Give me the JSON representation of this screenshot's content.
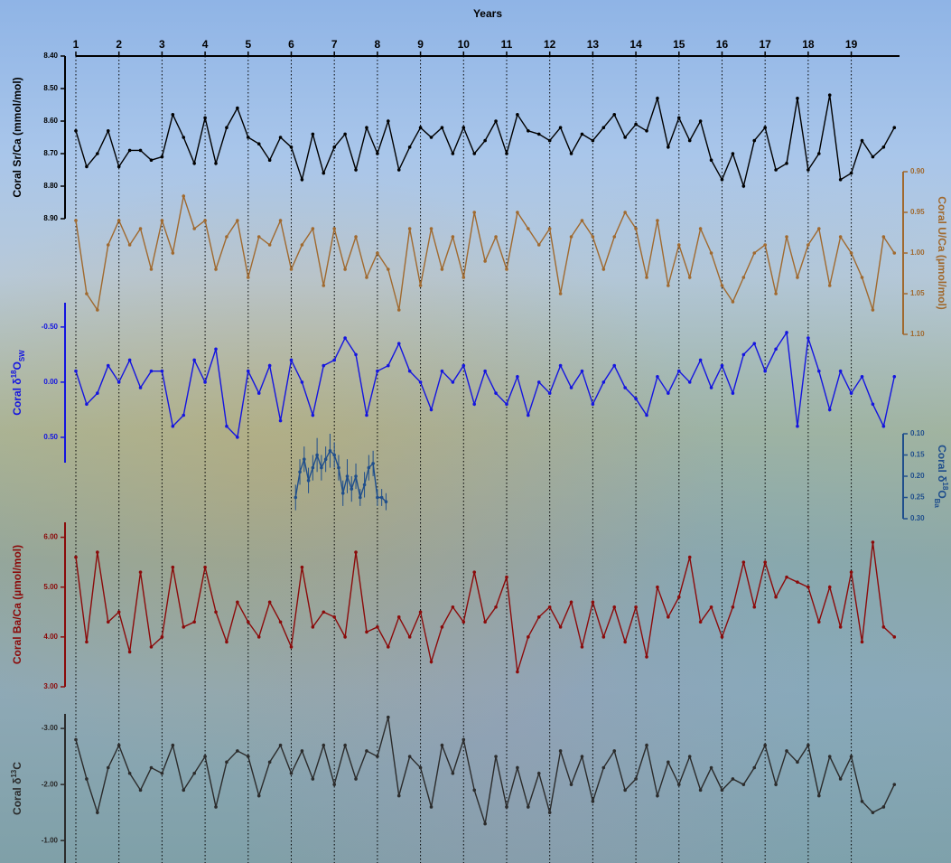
{
  "chart_data": {
    "type": "line",
    "xlabel": "Years",
    "xlim": [
      1,
      20.12
    ],
    "xticks": [
      1,
      2,
      3,
      4,
      5,
      6,
      7,
      8,
      9,
      10,
      11,
      12,
      13,
      14,
      15,
      16,
      17,
      18,
      19
    ],
    "grid": true,
    "x": [
      1,
      1.25,
      1.5,
      1.75,
      2,
      2.25,
      2.5,
      2.75,
      3,
      3.25,
      3.5,
      3.75,
      4,
      4.25,
      4.5,
      4.75,
      5,
      5.25,
      5.5,
      5.75,
      6,
      6.25,
      6.5,
      6.75,
      7,
      7.25,
      7.5,
      7.75,
      8,
      8.25,
      8.5,
      8.75,
      9,
      9.25,
      9.5,
      9.75,
      10,
      10.25,
      10.5,
      10.75,
      11,
      11.25,
      11.5,
      11.75,
      12,
      12.25,
      12.5,
      12.75,
      13,
      13.25,
      13.5,
      13.75,
      14,
      14.25,
      14.5,
      14.75,
      15,
      15.25,
      15.5,
      15.75,
      16,
      16.25,
      16.5,
      16.75,
      17,
      17.25,
      17.5,
      17.75,
      18,
      18.25,
      18.5,
      18.75,
      19,
      19.25,
      19.5,
      19.75,
      20
    ],
    "series": [
      {
        "label": [
          {
            "text": "Coral Sr/Ca (mmol/mol)"
          }
        ],
        "color": "#000000",
        "side": "left",
        "inverted": true,
        "ylim": [
          8.4,
          8.9
        ],
        "yticks": [
          {
            "value": 8.4,
            "label": "8.40"
          },
          {
            "value": 8.5,
            "label": "8.50"
          },
          {
            "value": 8.6,
            "label": "8.60"
          },
          {
            "value": 8.7,
            "label": "8.70"
          },
          {
            "value": 8.8,
            "label": "8.80"
          },
          {
            "value": 8.9,
            "label": "8.90"
          }
        ],
        "values": [
          8.63,
          8.74,
          8.7,
          8.63,
          8.74,
          8.69,
          8.69,
          8.72,
          8.71,
          8.58,
          8.65,
          8.73,
          8.59,
          8.73,
          8.62,
          8.56,
          8.65,
          8.67,
          8.72,
          8.65,
          8.68,
          8.78,
          8.64,
          8.76,
          8.68,
          8.64,
          8.75,
          8.62,
          8.7,
          8.6,
          8.75,
          8.68,
          8.62,
          8.65,
          8.62,
          8.7,
          8.62,
          8.7,
          8.66,
          8.6,
          8.7,
          8.58,
          8.63,
          8.64,
          8.66,
          8.62,
          8.7,
          8.64,
          8.66,
          8.62,
          8.58,
          8.65,
          8.61,
          8.63,
          8.53,
          8.68,
          8.59,
          8.66,
          8.6,
          8.72,
          8.78,
          8.7,
          8.8,
          8.66,
          8.62,
          8.75,
          8.73,
          8.53,
          8.75,
          8.7,
          8.52,
          8.78,
          8.76,
          8.66,
          8.71,
          8.68,
          8.62
        ]
      },
      {
        "label": [
          {
            "text": "Coral U/Ca (µmol/mol)"
          }
        ],
        "color": "#a0692e",
        "side": "right",
        "inverted": true,
        "ylim": [
          0.9,
          1.1
        ],
        "yticks": [
          {
            "value": 0.9,
            "label": "0.90"
          },
          {
            "value": 0.95,
            "label": "0.95"
          },
          {
            "value": 1.0,
            "label": "1.00"
          },
          {
            "value": 1.05,
            "label": "1.05"
          },
          {
            "value": 1.1,
            "label": "1.10"
          }
        ],
        "values": [
          0.96,
          1.05,
          1.07,
          0.99,
          0.96,
          0.99,
          0.97,
          1.02,
          0.96,
          1.0,
          0.93,
          0.97,
          0.96,
          1.02,
          0.98,
          0.96,
          1.03,
          0.98,
          0.99,
          0.96,
          1.02,
          0.99,
          0.97,
          1.04,
          0.97,
          1.02,
          0.98,
          1.03,
          1.0,
          1.02,
          1.07,
          0.97,
          1.04,
          0.97,
          1.02,
          0.98,
          1.03,
          0.95,
          1.01,
          0.98,
          1.02,
          0.95,
          0.97,
          0.99,
          0.97,
          1.05,
          0.98,
          0.96,
          0.98,
          1.02,
          0.98,
          0.95,
          0.97,
          1.03,
          0.96,
          1.04,
          0.99,
          1.03,
          0.97,
          1.0,
          1.04,
          1.06,
          1.03,
          1.0,
          0.99,
          1.05,
          0.98,
          1.03,
          0.99,
          0.97,
          1.04,
          0.98,
          1.0,
          1.03,
          1.07,
          0.98,
          1.0
        ]
      },
      {
        "label": [
          {
            "text": "Coral δ"
          },
          {
            "text": "18",
            "sup": true
          },
          {
            "text": "O"
          },
          {
            "text": "SW",
            "sub": true
          }
        ],
        "color": "#1414e0",
        "side": "left",
        "inverted": true,
        "ylim": [
          -0.72,
          0.73
        ],
        "yticks": [
          {
            "value": -0.5,
            "label": "-0.50"
          },
          {
            "value": 0,
            "label": "0.00"
          },
          {
            "value": 0.5,
            "label": "0.50"
          }
        ],
        "values": [
          -0.1,
          0.2,
          0.1,
          -0.15,
          0.0,
          -0.2,
          0.05,
          -0.1,
          -0.1,
          0.4,
          0.3,
          -0.2,
          0.0,
          -0.3,
          0.4,
          0.5,
          -0.1,
          0.1,
          -0.15,
          0.35,
          -0.2,
          0.0,
          0.3,
          -0.15,
          -0.2,
          -0.4,
          -0.25,
          0.3,
          -0.1,
          -0.15,
          -0.35,
          -0.1,
          0.0,
          0.25,
          -0.1,
          0.0,
          -0.15,
          0.2,
          -0.1,
          0.1,
          0.2,
          -0.05,
          0.3,
          0.0,
          0.1,
          -0.15,
          0.05,
          -0.1,
          0.2,
          0.0,
          -0.15,
          0.05,
          0.15,
          0.3,
          -0.05,
          0.1,
          -0.1,
          0.0,
          -0.2,
          0.05,
          -0.15,
          0.1,
          -0.25,
          -0.35,
          -0.1,
          -0.3,
          -0.45,
          0.4,
          -0.4,
          -0.1,
          0.25,
          -0.1,
          0.1,
          -0.05,
          0.2,
          0.4,
          -0.05
        ]
      },
      {
        "label": [
          {
            "text": "Coral δ"
          },
          {
            "text": "18",
            "sup": true
          },
          {
            "text": "O"
          },
          {
            "text": "Ba",
            "sub": true
          }
        ],
        "color": "#1f4e8c",
        "side": "right",
        "inverted": true,
        "ylim": [
          0.1,
          0.3
        ],
        "yticks": [
          {
            "value": 0.1,
            "label": "0.10"
          },
          {
            "value": 0.15,
            "label": "0.15"
          },
          {
            "value": 0.2,
            "label": "0.20"
          },
          {
            "value": 0.25,
            "label": "0.25"
          },
          {
            "value": 0.3,
            "label": "0.30"
          }
        ],
        "x": [
          6.1,
          6.2,
          6.3,
          6.4,
          6.5,
          6.6,
          6.7,
          6.8,
          6.9,
          7.0,
          7.1,
          7.2,
          7.3,
          7.4,
          7.5,
          7.6,
          7.7,
          7.8,
          7.9,
          8.0,
          8.1,
          8.2
        ],
        "values": [
          0.25,
          0.19,
          0.16,
          0.21,
          0.18,
          0.15,
          0.18,
          0.16,
          0.14,
          0.15,
          0.18,
          0.24,
          0.2,
          0.23,
          0.2,
          0.25,
          0.22,
          0.18,
          0.17,
          0.25,
          0.25,
          0.26
        ],
        "errors": [
          0.03,
          0.03,
          0.03,
          0.03,
          0.03,
          0.04,
          0.03,
          0.03,
          0.04,
          0.03,
          0.03,
          0.03,
          0.04,
          0.03,
          0.03,
          0.02,
          0.03,
          0.03,
          0.03,
          0.02,
          0.02,
          0.02
        ]
      },
      {
        "label": [
          {
            "text": "Coral Ba/Ca (µmol/mol)"
          }
        ],
        "color": "#8b0a0a",
        "side": "left",
        "inverted": false,
        "ylim": [
          3.0,
          6.3
        ],
        "yticks": [
          {
            "value": 3,
            "label": "3.00"
          },
          {
            "value": 4,
            "label": "4.00"
          },
          {
            "value": 5,
            "label": "5.00"
          },
          {
            "value": 6,
            "label": "6.00"
          }
        ],
        "values": [
          5.6,
          3.9,
          5.7,
          4.3,
          4.5,
          3.7,
          5.3,
          3.8,
          4.0,
          5.4,
          4.2,
          4.3,
          5.4,
          4.5,
          3.9,
          4.7,
          4.3,
          4.0,
          4.7,
          4.3,
          3.8,
          5.4,
          4.2,
          4.5,
          4.4,
          4.0,
          5.7,
          4.1,
          4.2,
          3.8,
          4.4,
          4.0,
          4.5,
          3.5,
          4.2,
          4.6,
          4.3,
          5.3,
          4.3,
          4.6,
          5.2,
          3.3,
          4.0,
          4.4,
          4.6,
          4.2,
          4.7,
          3.8,
          4.7,
          4.0,
          4.6,
          3.9,
          4.6,
          3.6,
          5.0,
          4.4,
          4.8,
          5.6,
          4.3,
          4.6,
          4.0,
          4.6,
          5.5,
          4.6,
          5.5,
          4.8,
          5.2,
          5.1,
          5.0,
          4.3,
          5.0,
          4.2,
          5.3,
          3.9,
          5.9,
          4.2,
          4.0
        ]
      },
      {
        "label": [
          {
            "text": "Coral δ"
          },
          {
            "text": "13",
            "sup": true
          },
          {
            "text": "C"
          }
        ],
        "color": "#2b2b2b",
        "side": "left",
        "inverted": true,
        "ylim": [
          -3.26,
          -0.6
        ],
        "yticks": [
          {
            "value": -3,
            "label": "-3.00"
          },
          {
            "value": -2,
            "label": "-2.00"
          },
          {
            "value": -1,
            "label": "-1.00"
          }
        ],
        "values": [
          -2.8,
          -2.1,
          -1.5,
          -2.3,
          -2.7,
          -2.2,
          -1.9,
          -2.3,
          -2.2,
          -2.7,
          -1.9,
          -2.2,
          -2.5,
          -1.6,
          -2.4,
          -2.6,
          -2.5,
          -1.8,
          -2.4,
          -2.7,
          -2.2,
          -2.6,
          -2.1,
          -2.7,
          -2.0,
          -2.7,
          -2.1,
          -2.6,
          -2.5,
          -3.2,
          -1.8,
          -2.5,
          -2.3,
          -1.6,
          -2.7,
          -2.2,
          -2.8,
          -1.9,
          -1.3,
          -2.5,
          -1.6,
          -2.3,
          -1.6,
          -2.2,
          -1.5,
          -2.6,
          -2.0,
          -2.5,
          -1.7,
          -2.3,
          -2.6,
          -1.9,
          -2.1,
          -2.7,
          -1.8,
          -2.4,
          -2.0,
          -2.5,
          -1.9,
          -2.3,
          -1.9,
          -2.1,
          -2.0,
          -2.3,
          -2.7,
          -2.0,
          -2.6,
          -2.4,
          -2.7,
          -1.8,
          -2.5,
          -2.1,
          -2.5,
          -1.7,
          -1.5,
          -1.6,
          -2.0
        ]
      }
    ]
  }
}
